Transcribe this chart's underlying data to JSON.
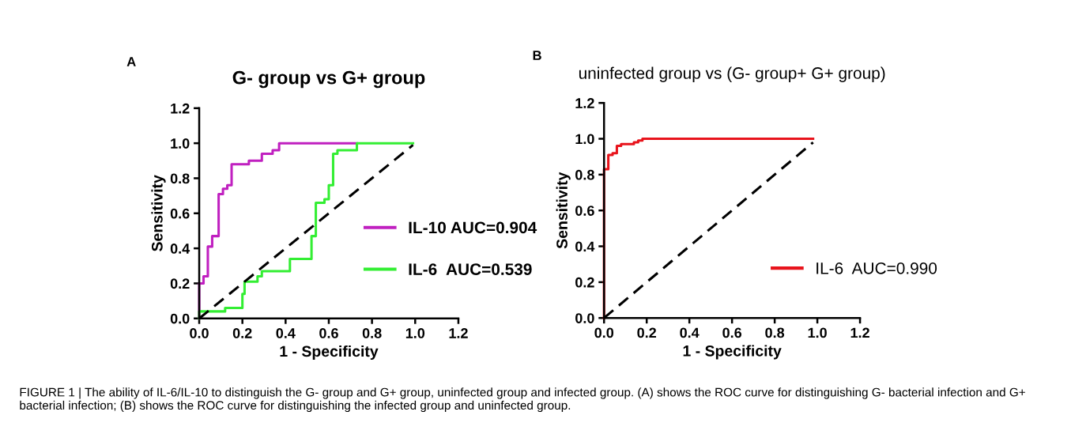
{
  "chart_data": [
    {
      "type": "line",
      "title": "G- group vs G+ group",
      "xlabel": "1 - Specificity",
      "ylabel": "Sensitivity",
      "annotations": [
        "A",
        "FIGURE 1 | The ability of IL-6/IL-10 to distinguish the G- group and G+ group, uninfected group and infected group. (A) shows the ROC curve for distinguishing G- bacterial infection and G+ bacterial infection; (B) shows the ROC curve for distinguishing the infected group and uninfected group."
      ],
      "xlim": [
        0,
        1.2
      ],
      "ylim": [
        0,
        1.2
      ],
      "xticks": [
        {
          "value": 0,
          "label": "0.0"
        },
        {
          "value": 0.2,
          "label": "0.2"
        },
        {
          "value": 0.4,
          "label": "0.4"
        },
        {
          "value": 0.6,
          "label": "0.6"
        },
        {
          "value": 0.8,
          "label": "0.8"
        },
        {
          "value": 1.0,
          "label": "1.0"
        },
        {
          "value": 1.2,
          "label": "1.2"
        }
      ],
      "yticks": [
        {
          "value": 0,
          "label": "0.0"
        },
        {
          "value": 0.2,
          "label": "0.2"
        },
        {
          "value": 0.4,
          "label": "0.4"
        },
        {
          "value": 0.6,
          "label": "0.6"
        },
        {
          "value": 0.8,
          "label": "0.8"
        },
        {
          "value": 1.0,
          "label": "1.0"
        },
        {
          "value": 1.2,
          "label": "1.2"
        }
      ],
      "legend": "bottom right",
      "series": [
        {
          "name": "IL-10 AUC=0.904",
          "color": "#c020c0",
          "x": [
            0,
            0,
            0.02,
            0.02,
            0.04,
            0.04,
            0.06,
            0.06,
            0.09,
            0.09,
            0.11,
            0.11,
            0.13,
            0.13,
            0.15,
            0.15,
            0.23,
            0.23,
            0.29,
            0.29,
            0.34,
            0.34,
            0.37,
            0.37,
            0.73
          ],
          "values": [
            0,
            0.2,
            0.2,
            0.24,
            0.24,
            0.41,
            0.41,
            0.47,
            0.47,
            0.71,
            0.71,
            0.74,
            0.74,
            0.76,
            0.76,
            0.88,
            0.88,
            0.9,
            0.9,
            0.94,
            0.94,
            0.96,
            0.96,
            1.0,
            1.0
          ]
        },
        {
          "name": "IL-6  AUC=0.539",
          "color": "#33ee33",
          "x": [
            0,
            0,
            0.12,
            0.12,
            0.2,
            0.2,
            0.21,
            0.21,
            0.27,
            0.27,
            0.29,
            0.29,
            0.42,
            0.42,
            0.52,
            0.52,
            0.54,
            0.54,
            0.58,
            0.58,
            0.6,
            0.6,
            0.62,
            0.62,
            0.64,
            0.64,
            0.73,
            0.73,
            0.99
          ],
          "values": [
            0,
            0.04,
            0.04,
            0.06,
            0.06,
            0.14,
            0.14,
            0.21,
            0.21,
            0.24,
            0.24,
            0.27,
            0.27,
            0.34,
            0.34,
            0.47,
            0.47,
            0.66,
            0.66,
            0.68,
            0.68,
            0.76,
            0.76,
            0.94,
            0.94,
            0.96,
            0.96,
            1.0,
            1.0
          ]
        },
        {
          "color": "#000000",
          "line_style": "dashed",
          "x": [
            0,
            0.99
          ],
          "values": [
            0,
            0.99
          ]
        }
      ]
    },
    {
      "type": "line",
      "title": "uninfected group vs (G- group+ G+ group)",
      "xlabel": "1 - Specificity",
      "ylabel": "Sensitivity",
      "annotations": [
        "B"
      ],
      "xlim": [
        0,
        1.2
      ],
      "ylim": [
        0,
        1.2
      ],
      "xticks": [
        {
          "value": 0,
          "label": "0.0"
        },
        {
          "value": 0.2,
          "label": "0.2"
        },
        {
          "value": 0.4,
          "label": "0.4"
        },
        {
          "value": 0.6,
          "label": "0.6"
        },
        {
          "value": 0.8,
          "label": "0.8"
        },
        {
          "value": 1.0,
          "label": "1.0"
        },
        {
          "value": 1.2,
          "label": "1.2"
        }
      ],
      "yticks": [
        {
          "value": 0,
          "label": "0.0"
        },
        {
          "value": 0.2,
          "label": "0.2"
        },
        {
          "value": 0.4,
          "label": "0.4"
        },
        {
          "value": 0.6,
          "label": "0.6"
        },
        {
          "value": 0.8,
          "label": "0.8"
        },
        {
          "value": 1.0,
          "label": "1.0"
        },
        {
          "value": 1.2,
          "label": "1.2"
        }
      ],
      "legend": "bottom right",
      "series": [
        {
          "name": "IL-6  AUC=0.990",
          "color": "#e8141c",
          "x": [
            0,
            0,
            0.02,
            0.02,
            0.04,
            0.04,
            0.06,
            0.06,
            0.08,
            0.08,
            0.14,
            0.14,
            0.16,
            0.16,
            0.18,
            0.18,
            0.98
          ],
          "values": [
            0,
            0.83,
            0.83,
            0.91,
            0.91,
            0.92,
            0.92,
            0.96,
            0.96,
            0.97,
            0.97,
            0.98,
            0.98,
            0.99,
            0.99,
            1.0,
            1.0
          ]
        },
        {
          "color": "#000000",
          "line_style": "dashed",
          "x": [
            0,
            0.98
          ],
          "values": [
            0,
            0.98
          ]
        }
      ]
    }
  ]
}
